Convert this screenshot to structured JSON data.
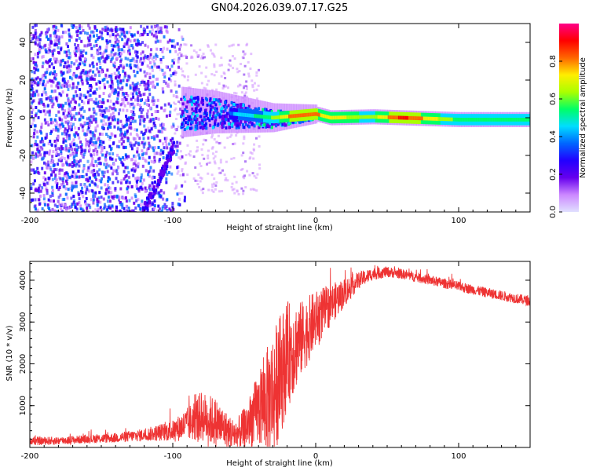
{
  "title": "GN04.2026.039.07.17.G25",
  "chart_data": [
    {
      "type": "heatmap",
      "name": "spectrogram",
      "xlabel": "Height of straight line (km)",
      "ylabel": "Frequency (Hz)",
      "xlim": [
        -200,
        150
      ],
      "ylim": [
        -50,
        50
      ],
      "xticks": [
        -200,
        -100,
        0,
        100
      ],
      "xtick_labels": [
        "-200",
        "-100",
        "0",
        "100"
      ],
      "yticks": [
        -40,
        -20,
        0,
        20,
        40
      ],
      "ytick_labels": [
        "-40",
        "-20",
        "0",
        "20",
        "40"
      ],
      "colorbar": {
        "label": "Normalized spectral amplitude",
        "range": [
          0,
          1
        ],
        "ticks": [
          0,
          0.2,
          0.4,
          0.6,
          0.8
        ],
        "tick_labels": [
          "0.0",
          "0.2",
          "0.4",
          "0.6",
          "0.8"
        ],
        "colormap": [
          "#e0e0ff",
          "#cc88ff",
          "#6600ee",
          "#2200ff",
          "#0066ff",
          "#00ddff",
          "#00ff66",
          "#aaff00",
          "#ffee00",
          "#ff6600",
          "#ff0000",
          "#ff0088"
        ]
      },
      "signal_ridge": [
        {
          "x": -95,
          "y": 3,
          "amp": 0.25
        },
        {
          "x": -70,
          "y": 3,
          "amp": 0.35
        },
        {
          "x": -50,
          "y": 1.5,
          "amp": 0.45
        },
        {
          "x": -30,
          "y": 0,
          "amp": 0.6
        },
        {
          "x": -15,
          "y": 1,
          "amp": 0.85
        },
        {
          "x": 0,
          "y": 2,
          "amp": 0.8
        },
        {
          "x": 10,
          "y": 0,
          "amp": 0.7
        },
        {
          "x": 40,
          "y": 0.5,
          "amp": 0.65
        },
        {
          "x": 60,
          "y": 0,
          "amp": 0.9
        },
        {
          "x": 100,
          "y": -1,
          "amp": 0.55
        },
        {
          "x": 150,
          "y": -1,
          "amp": 0.55
        }
      ]
    },
    {
      "type": "line",
      "name": "snr",
      "xlabel": "Height of straight line (km)",
      "ylabel": "SNR (10 * v/v)",
      "xlim": [
        -200,
        150
      ],
      "ylim": [
        0,
        4450
      ],
      "xticks": [
        -200,
        -100,
        0,
        100
      ],
      "xtick_labels": [
        "-200",
        "-100",
        "0",
        "100"
      ],
      "yticks": [
        1000,
        2000,
        3000,
        4000
      ],
      "ytick_labels": [
        "1000",
        "2000",
        "3000",
        "4000"
      ],
      "color": "#ee3333",
      "series": [
        {
          "name": "SNR",
          "x": [
            -200,
            -180,
            -160,
            -140,
            -120,
            -100,
            -90,
            -80,
            -70,
            -60,
            -55,
            -50,
            -40,
            -30,
            -25,
            -20,
            -10,
            0,
            10,
            20,
            30,
            40,
            50,
            60,
            80,
            100,
            120,
            150
          ],
          "y": [
            150,
            160,
            200,
            230,
            300,
            400,
            550,
            750,
            600,
            350,
            300,
            450,
            900,
            1300,
            1700,
            2200,
            2600,
            3050,
            3400,
            3700,
            4000,
            4150,
            4200,
            4150,
            4000,
            3850,
            3700,
            3500
          ],
          "noise_band": [
            100,
            100,
            100,
            120,
            150,
            250,
            400,
            600,
            600,
            400,
            400,
            500,
            900,
            1500,
            1500,
            1300,
            900,
            700,
            500,
            350,
            200,
            150,
            130,
            120,
            120,
            120,
            120,
            120
          ]
        }
      ]
    }
  ]
}
